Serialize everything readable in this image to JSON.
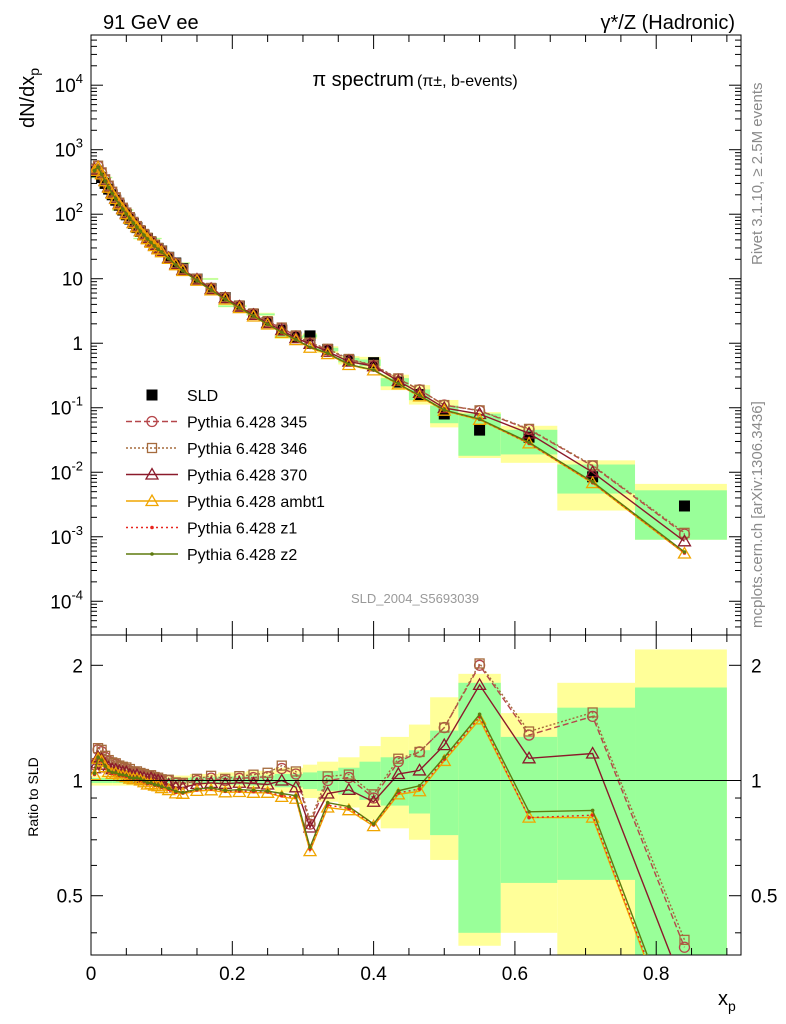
{
  "header": {
    "left": "91 GeV ee",
    "right": "γ*/Z (Hadronic)"
  },
  "side_labels": {
    "rivet": "Rivet 3.1.10, ≥ 2.5M events",
    "mcplots": "mcplots.cern.ch [arXiv:1306.3436]"
  },
  "chart_data": [
    {
      "type": "line",
      "title": "π spectrum",
      "subtitle": "(π±, b-events)",
      "xlabel": "x_p",
      "ylabel": "dN/dx_p",
      "yscale": "log",
      "xlim": [
        0,
        0.92
      ],
      "ylim": [
        3e-05,
        60000
      ],
      "ytick_labels": [
        "10^-4",
        "10^-3",
        "10^-2",
        "10^-1",
        "1",
        "10",
        "10^2",
        "10^3",
        "10^4"
      ],
      "watermark": "SLD_2004_S5693039",
      "legend_position": "lower-left",
      "x": [
        0.005,
        0.01,
        0.015,
        0.02,
        0.025,
        0.03,
        0.035,
        0.04,
        0.045,
        0.05,
        0.055,
        0.06,
        0.065,
        0.07,
        0.075,
        0.08,
        0.085,
        0.09,
        0.095,
        0.1,
        0.11,
        0.12,
        0.13,
        0.15,
        0.17,
        0.19,
        0.21,
        0.23,
        0.25,
        0.27,
        0.29,
        0.31,
        0.335,
        0.365,
        0.4,
        0.435,
        0.465,
        0.5,
        0.55,
        0.62,
        0.71,
        0.84
      ],
      "series": [
        {
          "name": "SLD",
          "color": "#000000",
          "marker": "square",
          "dash": "none",
          "values": [
            455,
            465,
            370,
            300,
            245,
            200,
            165,
            138,
            116,
            98,
            84,
            72,
            62,
            54,
            47.5,
            42,
            37,
            33,
            29.5,
            27,
            21.5,
            17.5,
            14.3,
            9.9,
            7.0,
            5.1,
            3.75,
            2.8,
            2.1,
            1.6,
            1.25,
            1.3,
            0.8,
            0.55,
            0.5,
            0.25,
            0.16,
            0.08,
            0.045,
            0.035,
            0.0085,
            0.003
          ]
        },
        {
          "name": "Pythia 6.428 345",
          "color": "#b5464a",
          "marker": "circle-open",
          "dash": "6,3",
          "values": [
            500,
            560,
            440,
            345,
            275,
            222,
            182,
            150,
            125,
            105,
            89,
            75.5,
            65,
            56,
            49,
            43,
            38,
            33.5,
            29.8,
            27,
            21.5,
            17.2,
            14,
            9.9,
            7.1,
            5.1,
            3.8,
            2.85,
            2.15,
            1.72,
            1.3,
            1.0,
            0.8,
            0.56,
            0.45,
            0.28,
            0.19,
            0.11,
            0.09,
            0.046,
            0.0125,
            0.0011
          ]
        },
        {
          "name": "Pythia 6.428 346",
          "color": "#a56b3d",
          "marker": "square-open",
          "dash": "2,2",
          "values": [
            505,
            565,
            445,
            348,
            277,
            223,
            183,
            151,
            126,
            106,
            90,
            76,
            65.5,
            56.5,
            49.4,
            43.2,
            38.2,
            33.7,
            30,
            27.2,
            21.6,
            17.3,
            14.1,
            10,
            7.2,
            5.15,
            3.85,
            2.9,
            2.2,
            1.75,
            1.32,
            1.02,
            0.82,
            0.57,
            0.46,
            0.285,
            0.19,
            0.11,
            0.091,
            0.047,
            0.0128,
            0.00115
          ]
        },
        {
          "name": "Pythia 6.428 370",
          "color": "#8b1a2b",
          "marker": "triangle-open",
          "dash": "none",
          "values": [
            490,
            535,
            420,
            330,
            265,
            214,
            176,
            146,
            122,
            103,
            87,
            74,
            64,
            55,
            48.2,
            42.3,
            37.5,
            33.1,
            29.5,
            26.8,
            21,
            16.8,
            13.7,
            9.7,
            6.9,
            5.0,
            3.7,
            2.75,
            2.05,
            1.6,
            1.2,
            0.98,
            0.74,
            0.52,
            0.44,
            0.26,
            0.17,
            0.099,
            0.08,
            0.04,
            0.01,
            0.00085
          ]
        },
        {
          "name": "Pythia 6.428 ambt1",
          "color": "#f0a500",
          "marker": "triangle-open",
          "dash": "none",
          "values": [
            470,
            530,
            415,
            325,
            258,
            208,
            172,
            142,
            119,
            100,
            85,
            72.5,
            62.5,
            54,
            47,
            41,
            36.2,
            32,
            28.5,
            25.8,
            20.3,
            16.2,
            13.2,
            9.3,
            6.6,
            4.75,
            3.5,
            2.6,
            1.95,
            1.45,
            1.12,
            0.85,
            0.68,
            0.46,
            0.38,
            0.23,
            0.15,
            0.09,
            0.065,
            0.028,
            0.0068,
            0.00055
          ]
        },
        {
          "name": "Pythia 6.428 z1",
          "color": "#e8251e",
          "marker": "dot",
          "dash": "2,3",
          "values": [
            472,
            532,
            416,
            326,
            259,
            209,
            172.5,
            142.5,
            119.5,
            100.5,
            85.3,
            72.8,
            62.7,
            54.2,
            47.2,
            41.2,
            36.4,
            32.1,
            28.6,
            25.9,
            20.4,
            16.3,
            13.25,
            9.35,
            6.65,
            4.78,
            3.52,
            2.62,
            1.96,
            1.46,
            1.13,
            0.86,
            0.69,
            0.465,
            0.383,
            0.232,
            0.152,
            0.091,
            0.066,
            0.028,
            0.0069,
            0.00056
          ]
        },
        {
          "name": "Pythia 6.428 z2",
          "color": "#5e7a0e",
          "marker": "dot",
          "dash": "none",
          "values": [
            475,
            535,
            418,
            327,
            260,
            210,
            173,
            143,
            120,
            101,
            85.5,
            73,
            63,
            54.5,
            47.4,
            41.4,
            36.5,
            32.2,
            28.7,
            26,
            20.5,
            16.4,
            13.3,
            9.4,
            6.7,
            4.8,
            3.55,
            2.64,
            1.97,
            1.48,
            1.14,
            0.87,
            0.7,
            0.47,
            0.385,
            0.235,
            0.155,
            0.092,
            0.067,
            0.029,
            0.0071,
            0.00058
          ]
        }
      ]
    },
    {
      "type": "line",
      "title": "",
      "xlabel": "x_p",
      "ylabel": "Ratio to SLD",
      "yscale": "log",
      "xlim": [
        0,
        0.92
      ],
      "ylim": [
        0.35,
        2.4
      ],
      "ytick_labels": [
        "0.5",
        "1",
        "2"
      ],
      "xtick_labels": [
        "0",
        "0.2",
        "0.4",
        "0.6",
        "0.8"
      ],
      "reference_line": 1,
      "uncertainty_bands": {
        "yellow_color": "#ffff99",
        "green_color": "#99ff99",
        "edges": [
          0,
          0.03,
          0.06,
          0.1,
          0.14,
          0.18,
          0.22,
          0.26,
          0.3,
          0.32,
          0.35,
          0.38,
          0.41,
          0.45,
          0.48,
          0.52,
          0.58,
          0.66,
          0.77,
          0.9
        ],
        "yellow_lo": [
          0.97,
          0.97,
          0.97,
          0.97,
          0.97,
          0.96,
          0.95,
          0.93,
          0.9,
          0.88,
          0.85,
          0.79,
          0.75,
          0.7,
          0.62,
          0.37,
          0.4,
          0.3,
          0.3
        ],
        "yellow_hi": [
          1.03,
          1.03,
          1.03,
          1.03,
          1.04,
          1.05,
          1.06,
          1.08,
          1.1,
          1.12,
          1.15,
          1.23,
          1.3,
          1.4,
          1.65,
          1.9,
          1.5,
          1.8,
          2.2
        ],
        "green_lo": [
          0.985,
          0.985,
          0.985,
          0.985,
          0.98,
          0.975,
          0.97,
          0.96,
          0.95,
          0.94,
          0.92,
          0.89,
          0.86,
          0.82,
          0.72,
          0.4,
          0.54,
          0.55,
          0.3
        ],
        "green_hi": [
          1.015,
          1.015,
          1.015,
          1.015,
          1.02,
          1.025,
          1.03,
          1.04,
          1.05,
          1.06,
          1.08,
          1.12,
          1.15,
          1.2,
          1.35,
          1.8,
          1.3,
          1.55,
          1.75
        ]
      }
    }
  ]
}
